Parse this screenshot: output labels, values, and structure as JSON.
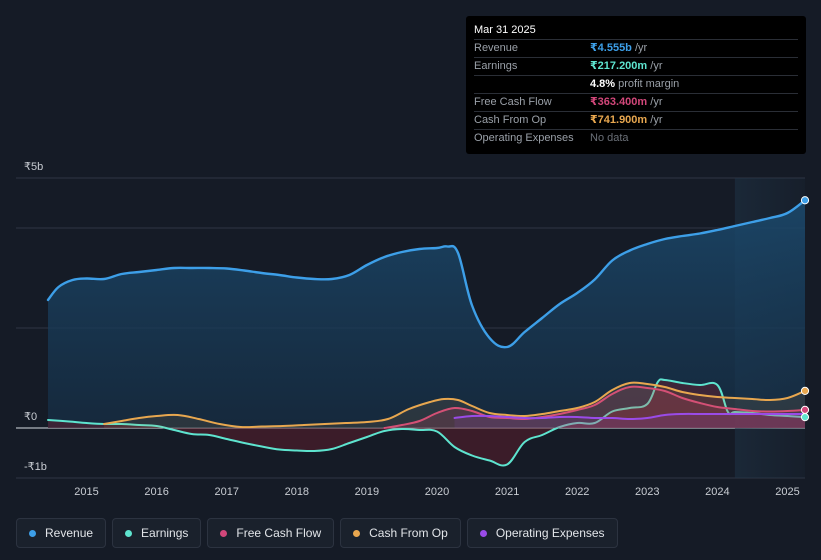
{
  "tooltip": {
    "date": "Mar 31 2025",
    "rows": [
      {
        "label": "Revenue",
        "value": "₹4.555b",
        "unit": " /yr",
        "color": "#3d9fe8"
      },
      {
        "label": "Earnings",
        "value": "₹217.200m",
        "unit": " /yr",
        "color": "#5ee4cf"
      },
      {
        "label": "",
        "value": "4.8%",
        "unit": " profit margin",
        "color": "#ffffff"
      },
      {
        "label": "Free Cash Flow",
        "value": "₹363.400m",
        "unit": " /yr",
        "color": "#d2477a"
      },
      {
        "label": "Cash From Op",
        "value": "₹741.900m",
        "unit": " /yr",
        "color": "#e8a74f"
      },
      {
        "label": "Operating Expenses",
        "value": "No data",
        "unit": "",
        "color": "#6b7078"
      }
    ]
  },
  "legend": [
    {
      "label": "Revenue",
      "color": "#3d9fe8"
    },
    {
      "label": "Earnings",
      "color": "#5ee4cf"
    },
    {
      "label": "Free Cash Flow",
      "color": "#d2477a"
    },
    {
      "label": "Cash From Op",
      "color": "#e8a74f"
    },
    {
      "label": "Operating Expenses",
      "color": "#9a4be8"
    }
  ],
  "chart_data": {
    "type": "area",
    "title": "",
    "xlabel": "",
    "ylabel": "",
    "currency": "₹",
    "ylim": [
      -1.0,
      5.0
    ],
    "y_tick_labels": [
      {
        "value": 5,
        "label": "₹5b"
      },
      {
        "value": 0,
        "label": "₹0"
      },
      {
        "value": -1,
        "label": "-₹1b"
      }
    ],
    "xlim": [
      2014.45,
      2025.25
    ],
    "x_tick_labels": [
      "2015",
      "2016",
      "2017",
      "2018",
      "2019",
      "2020",
      "2021",
      "2022",
      "2023",
      "2024",
      "2025"
    ],
    "highlight_from": 2024.25,
    "units": "₹ billions",
    "series": [
      {
        "name": "Revenue",
        "color": "#3d9fe8",
        "x": [
          2014.45,
          2014.6,
          2014.8,
          2015.0,
          2015.25,
          2015.5,
          2015.75,
          2016.0,
          2016.25,
          2016.5,
          2016.75,
          2017.0,
          2017.25,
          2017.5,
          2017.75,
          2018.0,
          2018.25,
          2018.5,
          2018.75,
          2019.0,
          2019.25,
          2019.5,
          2019.75,
          2020.0,
          2020.15,
          2020.3,
          2020.5,
          2020.75,
          2021.0,
          2021.25,
          2021.5,
          2021.75,
          2022.0,
          2022.25,
          2022.5,
          2022.75,
          2023.0,
          2023.25,
          2023.5,
          2023.75,
          2024.0,
          2024.25,
          2024.5,
          2024.75,
          2025.0,
          2025.25
        ],
        "values": [
          2.56,
          2.82,
          2.96,
          2.99,
          2.98,
          3.08,
          3.12,
          3.16,
          3.2,
          3.2,
          3.2,
          3.19,
          3.15,
          3.1,
          3.06,
          3.01,
          2.98,
          2.98,
          3.06,
          3.26,
          3.42,
          3.52,
          3.58,
          3.6,
          3.63,
          3.5,
          2.45,
          1.8,
          1.62,
          1.92,
          2.2,
          2.48,
          2.7,
          2.97,
          3.35,
          3.55,
          3.68,
          3.78,
          3.84,
          3.89,
          3.96,
          4.04,
          4.12,
          4.2,
          4.3,
          4.555
        ]
      },
      {
        "name": "Earnings",
        "color": "#5ee4cf",
        "x": [
          2014.45,
          2014.75,
          2015.0,
          2015.25,
          2015.5,
          2015.75,
          2016.0,
          2016.25,
          2016.5,
          2016.75,
          2017.0,
          2017.25,
          2017.5,
          2017.75,
          2018.0,
          2018.25,
          2018.5,
          2018.75,
          2019.0,
          2019.25,
          2019.5,
          2019.75,
          2020.0,
          2020.25,
          2020.5,
          2020.75,
          2021.0,
          2021.25,
          2021.5,
          2021.75,
          2022.0,
          2022.25,
          2022.5,
          2022.75,
          2023.0,
          2023.15,
          2023.25,
          2023.5,
          2023.75,
          2024.0,
          2024.15,
          2024.25,
          2024.5,
          2024.75,
          2025.0,
          2025.25
        ],
        "values": [
          0.16,
          0.13,
          0.1,
          0.08,
          0.08,
          0.06,
          0.04,
          -0.04,
          -0.12,
          -0.14,
          -0.22,
          -0.3,
          -0.37,
          -0.43,
          -0.45,
          -0.46,
          -0.42,
          -0.3,
          -0.18,
          -0.06,
          -0.02,
          -0.04,
          -0.07,
          -0.38,
          -0.55,
          -0.65,
          -0.73,
          -0.28,
          -0.14,
          0.02,
          0.1,
          0.1,
          0.33,
          0.4,
          0.48,
          0.92,
          0.96,
          0.9,
          0.86,
          0.86,
          0.32,
          0.32,
          0.3,
          0.26,
          0.24,
          0.217
        ]
      },
      {
        "name": "Free Cash Flow",
        "color": "#d2477a",
        "x": [
          2019.25,
          2019.5,
          2019.75,
          2020.0,
          2020.25,
          2020.5,
          2020.75,
          2021.0,
          2021.25,
          2021.5,
          2021.75,
          2022.0,
          2022.25,
          2022.5,
          2022.75,
          2023.0,
          2023.25,
          2023.5,
          2023.75,
          2024.0,
          2024.25,
          2024.5,
          2024.75,
          2025.0,
          2025.25
        ],
        "values": [
          0.0,
          0.06,
          0.14,
          0.3,
          0.4,
          0.34,
          0.22,
          0.2,
          0.18,
          0.22,
          0.28,
          0.36,
          0.46,
          0.68,
          0.82,
          0.8,
          0.74,
          0.6,
          0.5,
          0.42,
          0.38,
          0.34,
          0.33,
          0.34,
          0.363
        ]
      },
      {
        "name": "Cash From Op",
        "color": "#e8a74f",
        "x": [
          2015.25,
          2015.5,
          2015.75,
          2016.0,
          2016.3,
          2016.6,
          2016.9,
          2017.2,
          2017.5,
          2017.8,
          2018.1,
          2018.4,
          2018.7,
          2019.0,
          2019.3,
          2019.6,
          2019.9,
          2020.1,
          2020.3,
          2020.5,
          2020.75,
          2021.0,
          2021.25,
          2021.5,
          2021.75,
          2022.0,
          2022.25,
          2022.5,
          2022.75,
          2023.0,
          2023.25,
          2023.5,
          2023.75,
          2024.0,
          2024.25,
          2024.5,
          2024.75,
          2025.0,
          2025.25
        ],
        "values": [
          0.08,
          0.14,
          0.2,
          0.24,
          0.26,
          0.18,
          0.08,
          0.02,
          0.03,
          0.04,
          0.06,
          0.08,
          0.1,
          0.12,
          0.18,
          0.38,
          0.52,
          0.58,
          0.56,
          0.44,
          0.3,
          0.26,
          0.24,
          0.28,
          0.34,
          0.4,
          0.52,
          0.76,
          0.9,
          0.88,
          0.82,
          0.72,
          0.66,
          0.62,
          0.6,
          0.58,
          0.56,
          0.6,
          0.742
        ]
      },
      {
        "name": "Operating Expenses",
        "color": "#9a4be8",
        "x": [
          2020.25,
          2020.5,
          2020.75,
          2021.0,
          2021.25,
          2021.5,
          2021.75,
          2022.0,
          2022.25,
          2022.5,
          2022.75,
          2023.0,
          2023.25,
          2023.5,
          2023.75,
          2024.0,
          2024.25,
          2024.5,
          2024.75,
          2025.0,
          2025.25
        ],
        "values": [
          0.2,
          0.24,
          0.24,
          0.22,
          0.2,
          0.2,
          0.22,
          0.22,
          0.2,
          0.2,
          0.18,
          0.2,
          0.26,
          0.28,
          0.28,
          0.28,
          0.28,
          0.28,
          0.28,
          0.28,
          0.28
        ]
      }
    ]
  }
}
